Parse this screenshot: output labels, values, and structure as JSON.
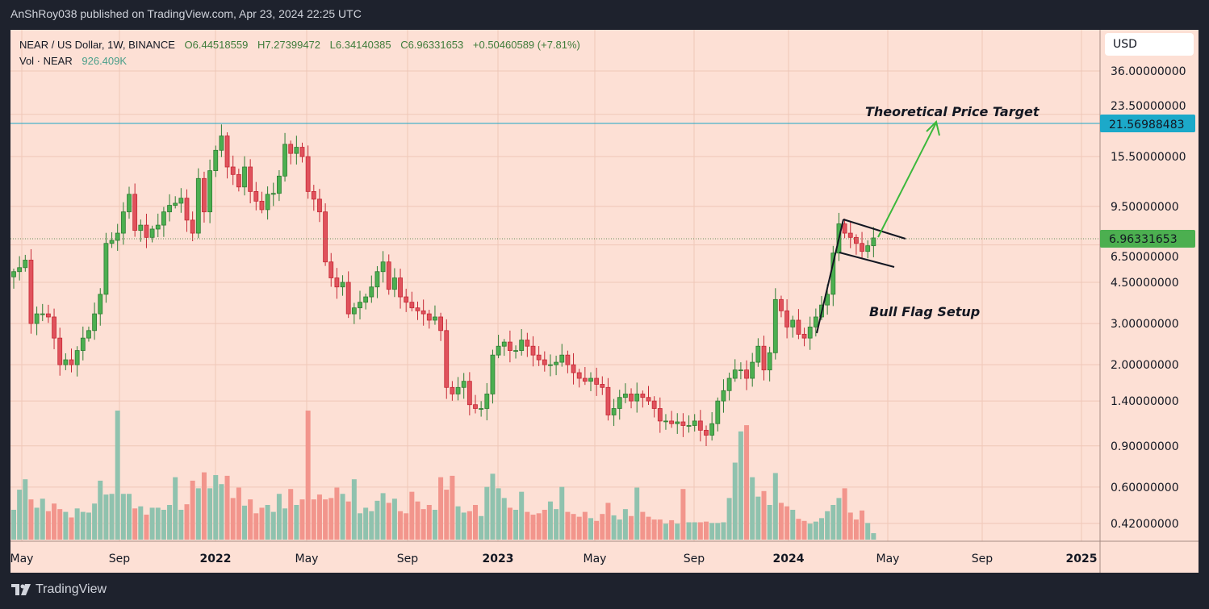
{
  "header": {
    "published": "AnShRoy038 published on TradingView.com, Apr 23, 2024 22:25 UTC"
  },
  "legend": {
    "symbol": "NEAR / US Dollar, 1W, BINANCE",
    "open": "O6.44518559",
    "high": "H7.27399472",
    "low": "L6.34140385",
    "close": "C6.96331653",
    "change": "+0.50460589 (+7.81%)",
    "volume_label": "Vol · NEAR",
    "volume_value": "926.409K"
  },
  "price_axis": {
    "currency": "USD",
    "labels": [
      "36.00000000",
      "23.50000000",
      "15.50000000",
      "9.50000000",
      "6.50000000",
      "4.50000000",
      "3.00000000",
      "2.00000000",
      "1.40000000",
      "0.90000000",
      "0.60000000",
      "0.42000000"
    ],
    "target_tag": "21.56988483",
    "last_price_tag": "6.96331653"
  },
  "annotations": {
    "target": "Theoretical Price Target",
    "pattern": "Bull Flag Setup"
  },
  "footer": {
    "brand": "TradingView"
  },
  "colors": {
    "up": "#4caf50",
    "down": "#e0525c",
    "vol_up": "#8fc2ae",
    "vol_down": "#f2958c",
    "target_line": "#1aa6c8",
    "arrow": "#3cb83c",
    "background": "#fde0d5"
  },
  "chart_data": {
    "type": "candlestick",
    "scale": "log",
    "interval": "1W",
    "ylim": [
      0.42,
      36
    ],
    "grid": true,
    "x_tick_labels": [
      "May",
      "Sep",
      "2022",
      "May",
      "Sep",
      "2023",
      "May",
      "Sep",
      "2024",
      "May",
      "Sep",
      "2025"
    ],
    "close": [
      5.0,
      5.2,
      5.6,
      3.0,
      3.3,
      3.3,
      3.2,
      2.6,
      2.0,
      2.1,
      2.0,
      2.3,
      2.6,
      2.8,
      3.3,
      4.0,
      6.6,
      6.8,
      7.3,
      9.0,
      10.7,
      7.5,
      7.9,
      7.0,
      7.6,
      7.9,
      9.0,
      9.6,
      9.8,
      10.3,
      8.3,
      7.3,
      12.5,
      9.0,
      13.5,
      16.5,
      19.0,
      14.0,
      13.0,
      11.5,
      14.0,
      11.0,
      10.0,
      9.2,
      10.7,
      10.8,
      12.8,
      17.5,
      16.0,
      17.0,
      15.5,
      11.0,
      10.2,
      9.0,
      5.5,
      4.7,
      4.3,
      4.5,
      3.3,
      3.5,
      3.7,
      3.9,
      4.3,
      5.0,
      5.5,
      4.2,
      4.7,
      3.9,
      3.7,
      3.5,
      3.4,
      3.3,
      3.1,
      3.2,
      2.8,
      1.6,
      1.5,
      1.6,
      1.7,
      1.35,
      1.3,
      1.3,
      1.5,
      2.2,
      2.4,
      2.5,
      2.3,
      2.3,
      2.55,
      2.4,
      2.2,
      2.1,
      2.0,
      2.0,
      2.05,
      2.2,
      2.0,
      1.85,
      1.75,
      1.7,
      1.75,
      1.65,
      1.6,
      1.22,
      1.3,
      1.45,
      1.5,
      1.4,
      1.5,
      1.45,
      1.4,
      1.3,
      1.15,
      1.15,
      1.12,
      1.14,
      1.1,
      1.1,
      1.15,
      1.05,
      1.0,
      1.12,
      1.4,
      1.55,
      1.75,
      1.9,
      1.9,
      1.75,
      2.05,
      2.4,
      1.9,
      2.25,
      3.8,
      3.4,
      2.9,
      3.1,
      2.7,
      2.6,
      2.9,
      3.2,
      3.6,
      4.0,
      6.0,
      8.0,
      7.3,
      7.0,
      6.6,
      6.1,
      6.45,
      6.96331653
    ],
    "volume_millions": [
      4.3,
      7.2,
      8.7,
      5.8,
      4.6,
      5.9,
      4.1,
      5.2,
      4.4,
      4.0,
      3.2,
      4.5,
      4.0,
      3.9,
      5.2,
      8.5,
      6.5,
      6.6,
      18.6,
      6.6,
      6.6,
      4.5,
      4.8,
      3.6,
      4.6,
      4.6,
      4.3,
      5.0,
      9.0,
      4.3,
      5.1,
      8.5,
      7.4,
      9.7,
      7.4,
      9.3,
      8.0,
      9.2,
      6.0,
      7.5,
      4.9,
      5.8,
      3.8,
      4.6,
      5.0,
      4.0,
      6.6,
      4.5,
      7.3,
      5.0,
      5.8,
      18.6,
      5.8,
      6.5,
      5.8,
      6.0,
      7.5,
      6.6,
      5.5,
      8.7,
      3.8,
      4.6,
      4.1,
      5.6,
      6.7,
      5.3,
      5.9,
      4.1,
      3.8,
      6.9,
      5.5,
      4.4,
      5.0,
      4.3,
      9.0,
      7.2,
      9.2,
      4.8,
      3.9,
      4.1,
      5.0,
      3.4,
      7.6,
      9.5,
      7.4,
      6.0,
      4.6,
      4.3,
      6.9,
      4.0,
      3.6,
      3.8,
      4.3,
      5.5,
      4.4,
      7.6,
      4.0,
      3.7,
      3.3,
      4.0,
      3.1,
      2.7,
      3.7,
      5.3,
      3.5,
      2.9,
      4.4,
      3.4,
      7.5,
      4.0,
      3.3,
      2.9,
      2.9,
      2.3,
      2.8,
      2.3,
      7.3,
      2.5,
      2.5,
      2.5,
      2.6,
      2.4,
      2.4,
      2.5,
      6.0,
      11.1,
      15.6,
      16.5,
      9.0,
      6.2,
      7.0,
      5.0,
      9.6,
      5.3,
      4.8,
      4.3,
      3.0,
      2.7,
      2.3,
      2.6,
      3.1,
      4.1,
      5.0,
      6.0,
      7.4,
      3.9,
      2.9,
      4.2,
      2.4,
      0.926409
    ],
    "horizontal_line": 21.56988483,
    "last_price": 6.96331653
  }
}
